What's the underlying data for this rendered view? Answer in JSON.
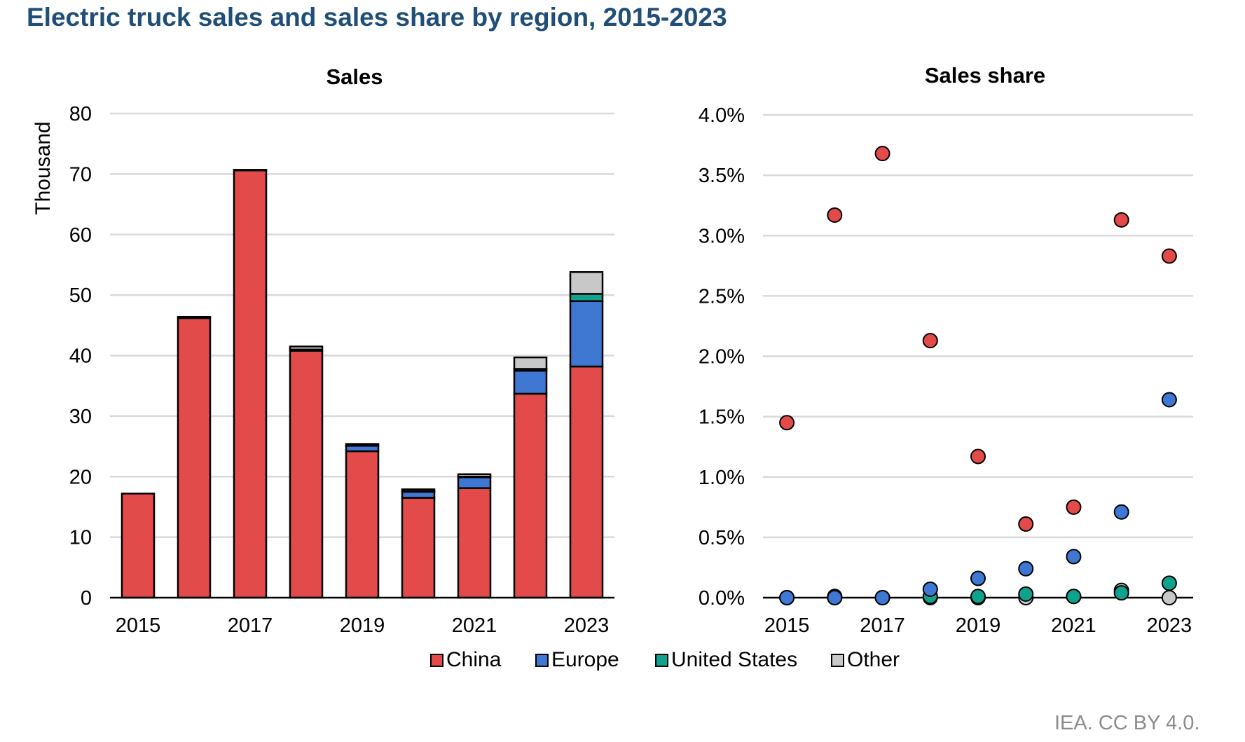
{
  "title": "Electric truck sales and sales share by region, 2015-2023",
  "source": "IEA. CC BY 4.0.",
  "chart_data": [
    {
      "type": "bar",
      "stacked": true,
      "title": "Sales",
      "ylabel": "Thousand",
      "categories": [
        2015,
        2016,
        2017,
        2018,
        2019,
        2020,
        2021,
        2022,
        2023
      ],
      "x_tick_labels": [
        "2015",
        "2017",
        "2019",
        "2021",
        "2023"
      ],
      "y_tick_labels": [
        "0",
        "10",
        "20",
        "30",
        "40",
        "50",
        "60",
        "70",
        "80"
      ],
      "ylim": [
        0,
        80
      ],
      "grid": true,
      "series": [
        {
          "name": "China",
          "color": "#e34a4a",
          "values": [
            17.2,
            46.2,
            70.6,
            40.8,
            24.2,
            16.5,
            18.1,
            33.7,
            38.2
          ]
        },
        {
          "name": "Europe",
          "color": "#3f78d2",
          "values": [
            0.0,
            0.0,
            0.0,
            0.2,
            0.9,
            1.0,
            1.8,
            3.8,
            10.8
          ]
        },
        {
          "name": "United States",
          "color": "#0fa38e",
          "values": [
            0.0,
            0.0,
            0.0,
            0.0,
            0.1,
            0.1,
            0.1,
            0.3,
            1.2
          ]
        },
        {
          "name": "Other",
          "color": "#c8c8c8",
          "values": [
            0.0,
            0.2,
            0.1,
            0.5,
            0.2,
            0.3,
            0.4,
            1.9,
            3.6
          ]
        }
      ]
    },
    {
      "type": "scatter",
      "title": "Sales share",
      "categories": [
        2015,
        2016,
        2017,
        2018,
        2019,
        2020,
        2021,
        2022,
        2023
      ],
      "x_tick_labels": [
        "2015",
        "2017",
        "2019",
        "2021",
        "2023"
      ],
      "y_tick_labels": [
        "0.0%",
        "0.5%",
        "1.0%",
        "1.5%",
        "2.0%",
        "2.5%",
        "3.0%",
        "3.5%",
        "4.0%"
      ],
      "ylim": [
        0,
        4.0
      ],
      "grid": true,
      "series": [
        {
          "name": "Other",
          "color": "#c8c8c8",
          "values": [
            0.0,
            0.0,
            0.0,
            0.0,
            0.0,
            0.0,
            0.01,
            0.06,
            0.0
          ]
        },
        {
          "name": "United States",
          "color": "#0fa38e",
          "values": [
            0.0,
            0.01,
            0.0,
            0.01,
            0.01,
            0.03,
            0.01,
            0.04,
            0.12
          ]
        },
        {
          "name": "Europe",
          "color": "#3f78d2",
          "values": [
            0.0,
            0.0,
            0.0,
            0.07,
            0.16,
            0.24,
            0.34,
            0.71,
            1.64
          ]
        },
        {
          "name": "China",
          "color": "#e34a4a",
          "values": [
            1.45,
            3.17,
            3.68,
            2.13,
            1.17,
            0.61,
            0.75,
            3.13,
            2.83
          ]
        }
      ]
    }
  ],
  "legend": [
    {
      "label": "China",
      "color": "#e34a4a"
    },
    {
      "label": "Europe",
      "color": "#3f78d2"
    },
    {
      "label": "United States",
      "color": "#0fa38e"
    },
    {
      "label": "Other",
      "color": "#c8c8c8"
    }
  ]
}
